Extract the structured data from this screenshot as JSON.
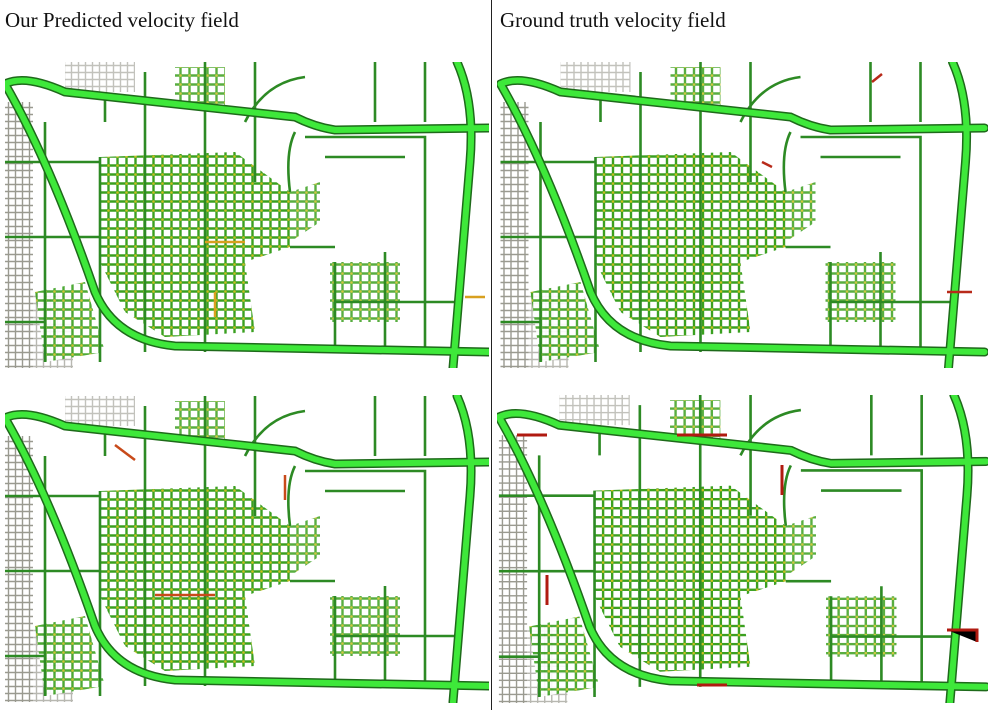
{
  "header": {
    "left_title": "Our Predicted velocity field",
    "right_title": "Ground truth velocity field"
  }
}
